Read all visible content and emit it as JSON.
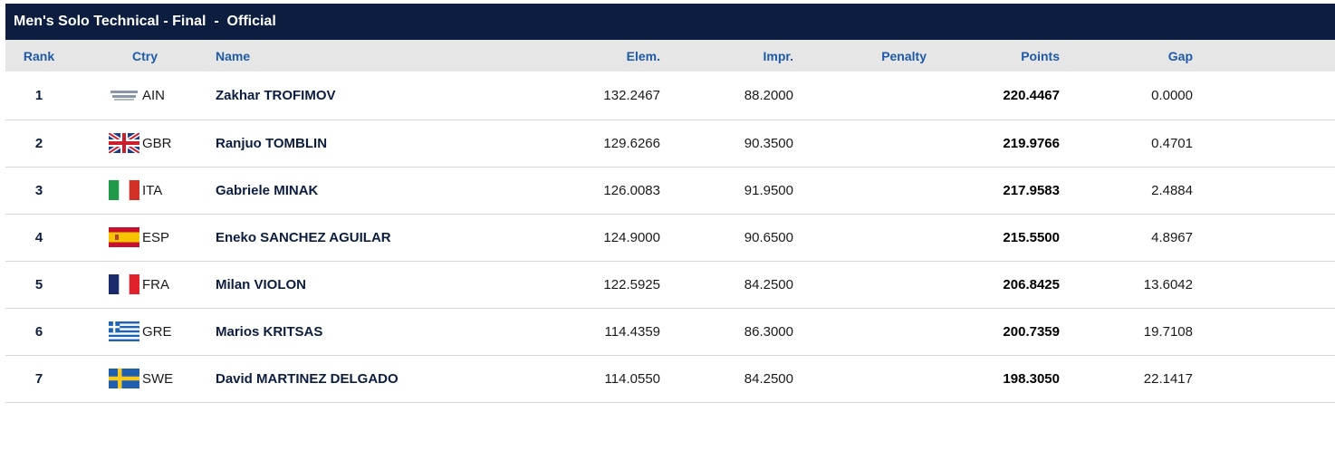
{
  "header": {
    "title": "Men's Solo Technical - Final  -  Official"
  },
  "columns": {
    "rank": "Rank",
    "ctry": "Ctry",
    "name": "Name",
    "elem": "Elem.",
    "impr": "Impr.",
    "penalty": "Penalty",
    "points": "Points",
    "gap": "Gap"
  },
  "rows": [
    {
      "rank": "1",
      "flag": "ain-flag-icon",
      "ctry": "AIN",
      "name": "Zakhar TROFIMOV",
      "elem": "132.2467",
      "impr": "88.2000",
      "penalty": "",
      "points": "220.4467",
      "gap": "0.0000"
    },
    {
      "rank": "2",
      "flag": "gbr-flag-icon",
      "ctry": "GBR",
      "name": "Ranjuo TOMBLIN",
      "elem": "129.6266",
      "impr": "90.3500",
      "penalty": "",
      "points": "219.9766",
      "gap": "0.4701"
    },
    {
      "rank": "3",
      "flag": "ita-flag-icon",
      "ctry": "ITA",
      "name": "Gabriele MINAK",
      "elem": "126.0083",
      "impr": "91.9500",
      "penalty": "",
      "points": "217.9583",
      "gap": "2.4884"
    },
    {
      "rank": "4",
      "flag": "esp-flag-icon",
      "ctry": "ESP",
      "name": "Eneko SANCHEZ AGUILAR",
      "elem": "124.9000",
      "impr": "90.6500",
      "penalty": "",
      "points": "215.5500",
      "gap": "4.8967"
    },
    {
      "rank": "5",
      "flag": "fra-flag-icon",
      "ctry": "FRA",
      "name": "Milan VIOLON",
      "elem": "122.5925",
      "impr": "84.2500",
      "penalty": "",
      "points": "206.8425",
      "gap": "13.6042"
    },
    {
      "rank": "6",
      "flag": "gre-flag-icon",
      "ctry": "GRE",
      "name": "Marios KRITSAS",
      "elem": "114.4359",
      "impr": "86.3000",
      "penalty": "",
      "points": "200.7359",
      "gap": "19.7108"
    },
    {
      "rank": "7",
      "flag": "swe-flag-icon",
      "ctry": "SWE",
      "name": "David MARTINEZ DELGADO",
      "elem": "114.0550",
      "impr": "84.2500",
      "penalty": "",
      "points": "198.3050",
      "gap": "22.1417"
    }
  ],
  "colors": {
    "header_bg": "#0c1d40",
    "column_header_text": "#1e5aa8",
    "column_header_bg": "#e6e6e6",
    "row_divider": "#d6d6d6"
  }
}
